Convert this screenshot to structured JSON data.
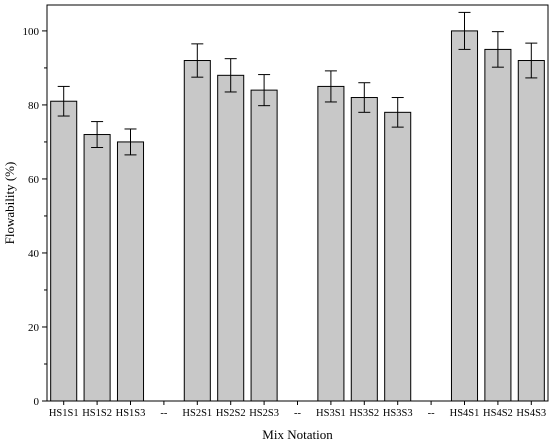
{
  "chart_data": {
    "type": "bar",
    "title": "",
    "xlabel": "Mix Notation",
    "ylabel": "Flowability (%)",
    "ylim": [
      0,
      107
    ],
    "yticks": [
      0,
      20,
      40,
      60,
      80,
      100
    ],
    "grid": false,
    "legend": "none",
    "bar_color": "#c8c8c8",
    "edge_color": "#000000",
    "categories": [
      "HS1S1",
      "HS1S2",
      "HS1S3",
      "--",
      "HS2S1",
      "HS2S2",
      "HS2S3",
      "--",
      "HS3S1",
      "HS3S2",
      "HS3S3",
      "--",
      "HS4S1",
      "HS4S2",
      "HS4S3"
    ],
    "values": [
      81,
      72,
      70,
      null,
      92,
      88,
      84,
      null,
      85,
      82,
      78,
      null,
      100,
      95,
      92
    ],
    "errors": [
      4,
      3.5,
      3.5,
      null,
      4.5,
      4.5,
      4.2,
      null,
      4.2,
      4,
      4,
      null,
      5,
      4.8,
      4.7
    ]
  }
}
